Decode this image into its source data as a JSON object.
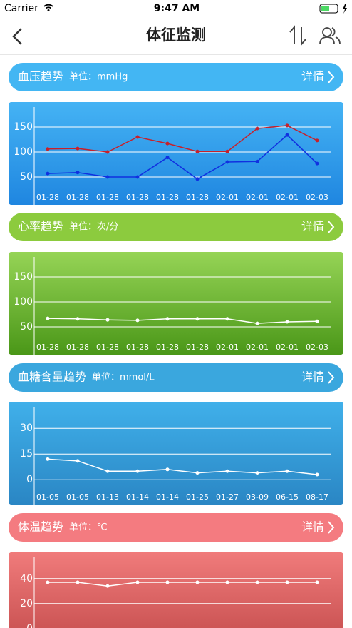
{
  "status_bar": {
    "carrier": "Carrier",
    "time": "9:47 AM"
  },
  "nav": {
    "title": "体征监测"
  },
  "sections": [
    {
      "title": "血压趋势",
      "unit": "单位：mmHg",
      "detail": "详情"
    },
    {
      "title": "心率趋势",
      "unit": "单位：次/分",
      "detail": "详情"
    },
    {
      "title": "血糖含量趋势",
      "unit": "单位：mmol/L",
      "detail": "详情"
    },
    {
      "title": "体温趋势",
      "unit": "单位：℃",
      "detail": "详情"
    }
  ],
  "chart_data": [
    {
      "type": "line",
      "categories": [
        "01-28",
        "01-28",
        "01-28",
        "01-28",
        "01-28",
        "01-28",
        "02-01",
        "02-01",
        "02-01",
        "02-03"
      ],
      "series": [
        {
          "color": "#c8202a",
          "values": [
            106,
            107,
            100,
            130,
            117,
            101,
            101,
            147,
            153,
            123
          ]
        },
        {
          "color": "#1030e0",
          "values": [
            57,
            59,
            50,
            50,
            89,
            46,
            80,
            81,
            134,
            77
          ]
        }
      ],
      "ylim": [
        20,
        190
      ],
      "yticks": [
        50,
        100,
        150
      ],
      "grid": true
    },
    {
      "type": "line",
      "categories": [
        "01-28",
        "01-28",
        "01-28",
        "01-28",
        "01-28",
        "01-28",
        "02-01",
        "02-01",
        "02-01",
        "02-03"
      ],
      "series": [
        {
          "color": "#ffffff",
          "values": [
            67,
            66,
            64,
            63,
            66,
            66,
            66,
            57,
            60,
            61
          ]
        }
      ],
      "ylim": [
        20,
        190
      ],
      "yticks": [
        50,
        100,
        150
      ],
      "grid": true
    },
    {
      "type": "line",
      "categories": [
        "01-05",
        "01-05",
        "01-13",
        "01-14",
        "01-14",
        "01-25",
        "01-27",
        "03-09",
        "06-15",
        "08-17"
      ],
      "series": [
        {
          "color": "#ffffff",
          "values": [
            12,
            11,
            5,
            5,
            6,
            4,
            5,
            4,
            5,
            3
          ]
        }
      ],
      "ylim": [
        -7,
        42.6
      ],
      "yticks": [
        0,
        15,
        30
      ],
      "grid": true
    },
    {
      "type": "line",
      "series": [
        {
          "color": "#ffffff",
          "values": [
            37,
            37,
            34,
            37,
            37,
            37,
            37,
            37,
            37,
            37
          ]
        }
      ],
      "ylim": [
        -11,
        57
      ],
      "yticks": [
        0,
        20,
        40
      ],
      "grid": true
    }
  ]
}
